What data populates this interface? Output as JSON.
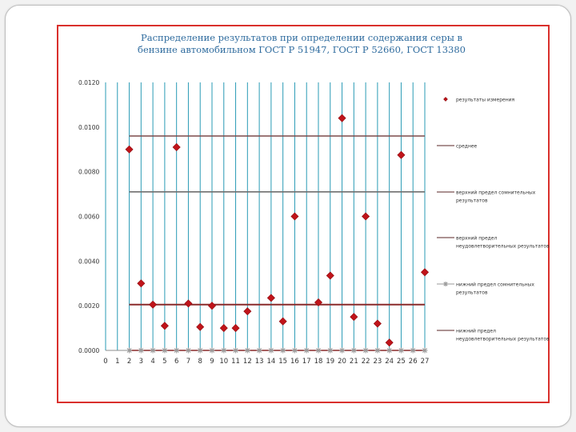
{
  "colors": {
    "grid": "#2a9bb6",
    "marker": "#c0141a",
    "mean_line": "#7b4a4a",
    "upper_line": "#6f6f6f",
    "lower_line": "#8a2a2a",
    "zero_marker": "#9a9a9a"
  },
  "chart_data": {
    "type": "scatter",
    "title_lines": [
      "Распределение результатов при определении содержания серы в",
      "бензине автомобильном ГОСТ Р 51947, ГОСТ Р 52660, ГОСТ 13380"
    ],
    "xlabel": "",
    "ylabel": "",
    "xlim": [
      0,
      27
    ],
    "ylim": [
      0,
      0.012
    ],
    "x_ticks": [
      "0",
      "1",
      "2",
      "3",
      "4",
      "5",
      "6",
      "7",
      "8",
      "9",
      "10",
      "11",
      "12",
      "13",
      "14",
      "15",
      "16",
      "17",
      "18",
      "19",
      "20",
      "21",
      "22",
      "23",
      "24",
      "25",
      "26",
      "27"
    ],
    "y_ticks": [
      "0.0000",
      "0.0020",
      "0.0040",
      "0.0060",
      "0.0080",
      "0.0100",
      "0.0120"
    ],
    "grid": "vertical lines at each x",
    "legend_position": "right",
    "series": [
      {
        "name": "результаты измерений",
        "marker": "diamond",
        "points": [
          [
            2,
            0.009
          ],
          [
            3,
            0.003
          ],
          [
            4,
            0.00205
          ],
          [
            5,
            0.0011
          ],
          [
            6,
            0.0091
          ],
          [
            7,
            0.0021
          ],
          [
            8,
            0.00105
          ],
          [
            9,
            0.002
          ],
          [
            10,
            0.001
          ],
          [
            11,
            0.001
          ],
          [
            12,
            0.00175
          ],
          [
            14,
            0.00235
          ],
          [
            15,
            0.0013
          ],
          [
            16,
            0.006
          ],
          [
            18,
            0.00215
          ],
          [
            19,
            0.00335
          ],
          [
            20,
            0.0104
          ],
          [
            21,
            0.0015
          ],
          [
            22,
            0.006
          ],
          [
            23,
            0.0012
          ],
          [
            24,
            0.00035
          ],
          [
            25,
            0.00875
          ],
          [
            27,
            0.0035
          ]
        ]
      },
      {
        "name": "среднее",
        "line": [
          [
            2,
            0.0096
          ],
          [
            27,
            0.0096
          ]
        ]
      },
      {
        "name": "верхний предел сомнительных результатов",
        "line": [
          [
            2,
            0.0071
          ],
          [
            27,
            0.0071
          ]
        ]
      },
      {
        "name": "верхний предел неудовлетворительных результатов",
        "line": [
          [
            2,
            0.00205
          ],
          [
            27,
            0.00205
          ]
        ]
      },
      {
        "name": "нижний предел сомнительных результатов",
        "marker": "star",
        "points": [
          [
            2,
            0
          ],
          [
            3,
            0
          ],
          [
            4,
            0
          ],
          [
            5,
            0
          ],
          [
            6,
            0
          ],
          [
            7,
            0
          ],
          [
            8,
            0
          ],
          [
            9,
            0
          ],
          [
            10,
            0
          ],
          [
            11,
            0
          ],
          [
            12,
            0
          ],
          [
            13,
            0
          ],
          [
            14,
            0
          ],
          [
            15,
            0
          ],
          [
            16,
            0
          ],
          [
            17,
            0
          ],
          [
            18,
            0
          ],
          [
            19,
            0
          ],
          [
            20,
            0
          ],
          [
            21,
            0
          ],
          [
            22,
            0
          ],
          [
            23,
            0
          ],
          [
            24,
            0
          ],
          [
            25,
            0
          ],
          [
            26,
            0
          ],
          [
            27,
            0
          ]
        ]
      },
      {
        "name": "нижний предел неудовлетворительных результатов",
        "line": [
          [
            2,
            0
          ],
          [
            27,
            0
          ]
        ]
      }
    ],
    "legend": [
      {
        "kind": "marker",
        "lines": [
          "результаты измерения"
        ]
      },
      {
        "kind": "line",
        "lines": [
          "среднее"
        ]
      },
      {
        "kind": "line",
        "lines": [
          "верхний предел сомнительных",
          "результатов"
        ]
      },
      {
        "kind": "line",
        "lines": [
          "верхний предел",
          "неудовлетворительных результатов"
        ]
      },
      {
        "kind": "star",
        "lines": [
          "нижний предел сомнительных",
          "результатов"
        ]
      },
      {
        "kind": "line",
        "lines": [
          "нижний предел",
          "неудовлетворительных результатов"
        ]
      }
    ]
  }
}
